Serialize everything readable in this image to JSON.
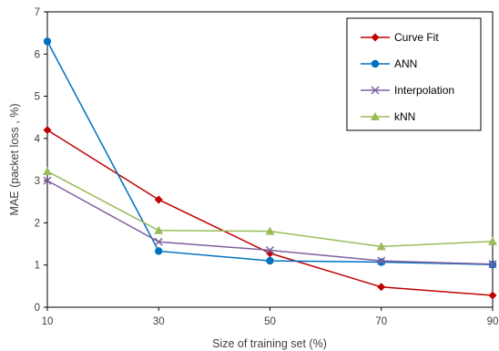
{
  "chart_data": {
    "type": "line",
    "title": "",
    "xlabel": "Size of training set (%)",
    "ylabel": "MAE (packet loss , %)",
    "x": [
      10,
      30,
      50,
      70,
      90
    ],
    "xlim": [
      10,
      90
    ],
    "ylim": [
      0,
      7
    ],
    "x_ticks": [
      "10",
      "30",
      "50",
      "70",
      "90"
    ],
    "y_ticks": [
      "0",
      "1",
      "2",
      "3",
      "4",
      "5",
      "6",
      "7"
    ],
    "grid": false,
    "legend_position": "top-right",
    "series": [
      {
        "name": "Curve Fit",
        "values": [
          4.2,
          2.55,
          1.28,
          0.48,
          0.28
        ],
        "color": "#C00000",
        "marker": "diamond"
      },
      {
        "name": "ANN",
        "values": [
          6.3,
          1.33,
          1.1,
          1.07,
          1.01
        ],
        "color": "#0070C0",
        "marker": "circle"
      },
      {
        "name": "Interpolation",
        "values": [
          3.0,
          1.55,
          1.35,
          1.1,
          1.02
        ],
        "color": "#7F60A0",
        "marker": "x"
      },
      {
        "name": "kNN",
        "values": [
          3.22,
          1.82,
          1.8,
          1.44,
          1.56
        ],
        "color": "#9BBB59",
        "marker": "triangle"
      }
    ]
  }
}
